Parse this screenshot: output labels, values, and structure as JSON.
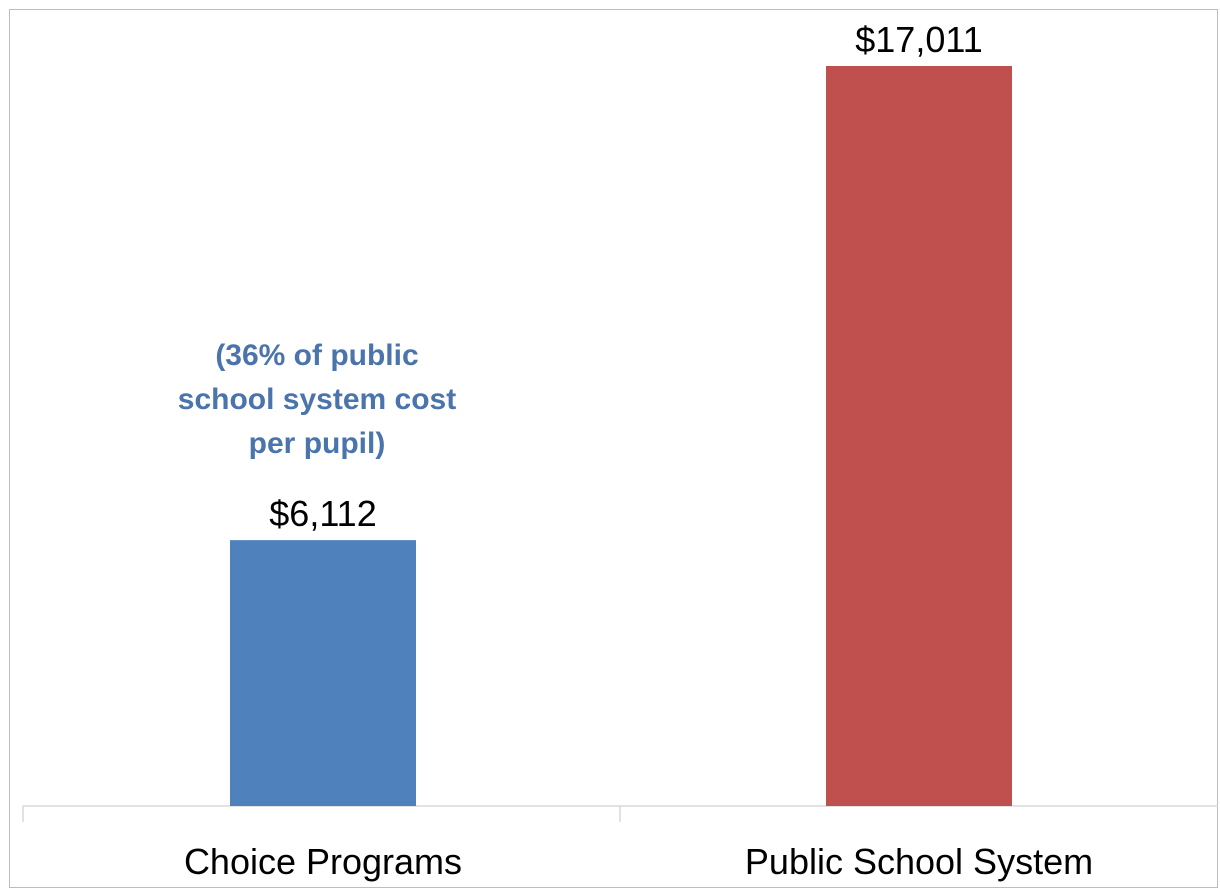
{
  "chart_data": {
    "type": "bar",
    "title": "",
    "xlabel": "",
    "ylabel": "",
    "categories": [
      "Choice Programs",
      "Public School System"
    ],
    "values": [
      6112,
      17011
    ],
    "value_labels": [
      "$6,112",
      "$17,011"
    ],
    "bar_colors": [
      "#4f81bd",
      "#c0504d"
    ],
    "annotation": {
      "lines": [
        "(36% of public",
        "school system cost",
        "per pupil)"
      ],
      "color": "#4a74ab",
      "category": "Choice Programs"
    },
    "ylim": [
      0,
      17011
    ],
    "grid": false,
    "legend": "none"
  }
}
